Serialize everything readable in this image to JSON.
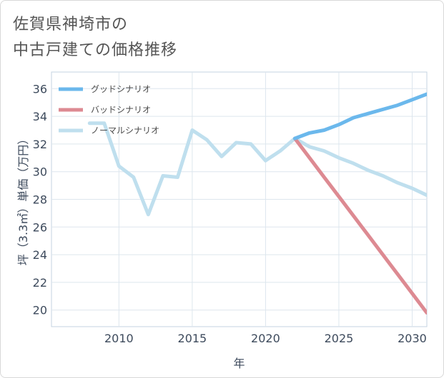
{
  "title": {
    "line1": "佐賀県神埼市の",
    "line2": "中古戸建ての価格推移"
  },
  "chart_data": {
    "type": "line",
    "xlabel": "年",
    "ylabel": "坪（3.3㎡）単価（万円）",
    "xlim": [
      2005.4,
      2031
    ],
    "ylim": [
      18.8,
      37.2
    ],
    "x_ticks": [
      2010,
      2015,
      2020,
      2025,
      2030
    ],
    "y_ticks": [
      20,
      22,
      24,
      26,
      28,
      30,
      32,
      34,
      36
    ],
    "grid": true,
    "legend_position": "top-left",
    "series": [
      {
        "name": "グッドシナリオ",
        "color": "#6bb8ec",
        "points": [
          [
            2022,
            32.4
          ],
          [
            2023,
            32.8
          ],
          [
            2024,
            33.0
          ],
          [
            2025,
            33.4
          ],
          [
            2026,
            33.9
          ],
          [
            2027,
            34.2
          ],
          [
            2028,
            34.5
          ],
          [
            2029,
            34.8
          ],
          [
            2030,
            35.2
          ],
          [
            2031,
            35.6
          ]
        ]
      },
      {
        "name": "バッドシナリオ",
        "color": "#dd8a92",
        "points": [
          [
            2022,
            32.4
          ],
          [
            2023,
            31.0
          ],
          [
            2024,
            29.6
          ],
          [
            2025,
            28.2
          ],
          [
            2026,
            26.8
          ],
          [
            2027,
            25.4
          ],
          [
            2028,
            24.0
          ],
          [
            2029,
            22.6
          ],
          [
            2030,
            21.2
          ],
          [
            2031,
            19.8
          ]
        ]
      },
      {
        "name": "ノーマルシナリオ",
        "color": "#bfdfee",
        "points": [
          [
            2008,
            33.5
          ],
          [
            2009,
            33.5
          ],
          [
            2010,
            30.4
          ],
          [
            2011,
            29.6
          ],
          [
            2012,
            26.9
          ],
          [
            2013,
            29.7
          ],
          [
            2014,
            29.6
          ],
          [
            2015,
            33.0
          ],
          [
            2016,
            32.3
          ],
          [
            2017,
            31.1
          ],
          [
            2018,
            32.1
          ],
          [
            2019,
            32.0
          ],
          [
            2020,
            30.8
          ],
          [
            2021,
            31.5
          ],
          [
            2022,
            32.4
          ],
          [
            2023,
            31.8
          ],
          [
            2024,
            31.5
          ],
          [
            2025,
            31.0
          ],
          [
            2026,
            30.6
          ],
          [
            2027,
            30.1
          ],
          [
            2028,
            29.7
          ],
          [
            2029,
            29.2
          ],
          [
            2030,
            28.8
          ],
          [
            2031,
            28.3
          ]
        ]
      }
    ]
  }
}
